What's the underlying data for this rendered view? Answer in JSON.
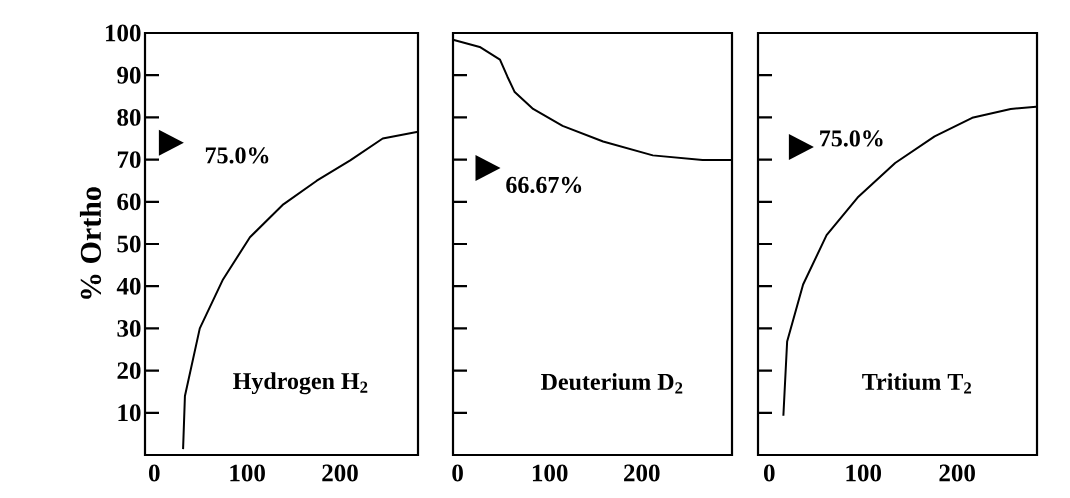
{
  "chart_data": [
    {
      "type": "line",
      "title": "Hydrogen H$_{2}$",
      "ylabel": "% Ortho",
      "color": "#000000",
      "x": [
        31,
        33,
        49,
        74,
        103,
        139,
        175,
        211,
        246,
        284
      ],
      "values": [
        1.4,
        14,
        30,
        41.6,
        51.6,
        59.4,
        65,
        69.8,
        75,
        76.6
      ],
      "xlim": [
        -10,
        284
      ],
      "ylim": [
        0,
        100
      ],
      "xticks": [
        0,
        100,
        200
      ],
      "yticks": [
        10,
        20,
        30,
        40,
        50,
        60,
        70,
        80,
        90,
        100
      ],
      "annotations": [
        "75.0%"
      ]
    },
    {
      "type": "line",
      "title": "Deuterium D$_{2}$",
      "color": "#000000",
      "x": [
        -5,
        24,
        46,
        54,
        62,
        82,
        114,
        158,
        212,
        266,
        298
      ],
      "values": [
        98.4,
        96.7,
        93.7,
        89.7,
        86,
        82,
        78,
        74.3,
        71,
        69.9,
        69.9
      ],
      "xlim": [
        -5,
        298
      ],
      "ylim": [
        0,
        100
      ],
      "xticks": [
        0,
        100,
        200
      ],
      "yticks": [
        10,
        20,
        30,
        40,
        50,
        60,
        70,
        80,
        90,
        100
      ],
      "tick_labels": "x",
      "annotations": [
        "66.67%"
      ]
    },
    {
      "type": "line",
      "title": "Tritium T$_{2}$",
      "color": "#000000",
      "x": [
        15,
        19,
        36,
        61,
        94,
        134,
        176,
        216,
        257,
        284
      ],
      "values": [
        9.3,
        26.9,
        40.4,
        52.1,
        61,
        69.2,
        75.5,
        79.9,
        82,
        82.5
      ],
      "xlim": [
        -12,
        285
      ],
      "ylim": [
        0,
        100
      ],
      "xticks": [
        0,
        100,
        200
      ],
      "yticks": [
        10,
        20,
        30,
        40,
        50,
        60,
        70,
        80,
        90,
        100
      ],
      "tick_labels": "x",
      "annotations": [
        "75.0%"
      ]
    }
  ]
}
